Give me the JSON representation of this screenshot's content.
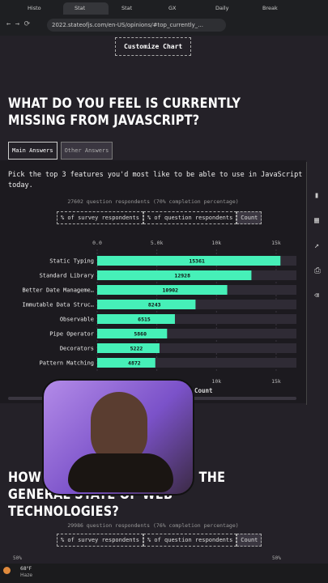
{
  "browser": {
    "tabs": [
      "Histo",
      "Stat",
      "Stat",
      "GX",
      "Daily",
      "Break"
    ],
    "url": "2022.stateofjs.com/en-US/opinions/#top_currently_..."
  },
  "page": {
    "customize": "Customize Chart",
    "title": "WHAT DO YOU FEEL IS CURRENTLY MISSING FROM JAVASCRIPT?",
    "tabs": [
      "Main Answers",
      "Other Answers"
    ],
    "description": "Pick the top 3 features you'd most like to be able to use in JavaScript today.",
    "respondents": "27602 question respondents (70% completion percentage)",
    "units": [
      "% of survey respondents",
      "% of question respondents",
      "Count"
    ],
    "section2": {
      "title": "HOW HAPPY ARE YOU WITH THE GENERAL STATE OF WEB TECHNOLOGIES?",
      "respondents": "29986 question respondents (76% completion percentage)",
      "units": [
        "% of survey respondents",
        "% of question respondents",
        "Count"
      ],
      "left": "50%",
      "right": "50%"
    }
  },
  "chart_data": {
    "type": "bar",
    "orientation": "horizontal",
    "x_label": "User Count",
    "color": "#46f0b8",
    "categories": [
      "Static Typing",
      "Standard Library",
      "Better Date Manageme…",
      "Immutable Data Struc…",
      "Observable",
      "Pipe Operator",
      "Decorators",
      "Pattern Matching"
    ],
    "values": [
      15361,
      12928,
      10902,
      8243,
      6515,
      5860,
      5222,
      4872
    ],
    "xlim": [
      0,
      16700
    ],
    "xticks": [
      {
        "value": 0,
        "label": "0.0"
      },
      {
        "value": 5000,
        "label": "5.0k"
      },
      {
        "value": 10000,
        "label": "10k"
      },
      {
        "value": 15000,
        "label": "15k"
      }
    ]
  },
  "taskbar": {
    "temp": "68°F",
    "weather": "Haze"
  }
}
